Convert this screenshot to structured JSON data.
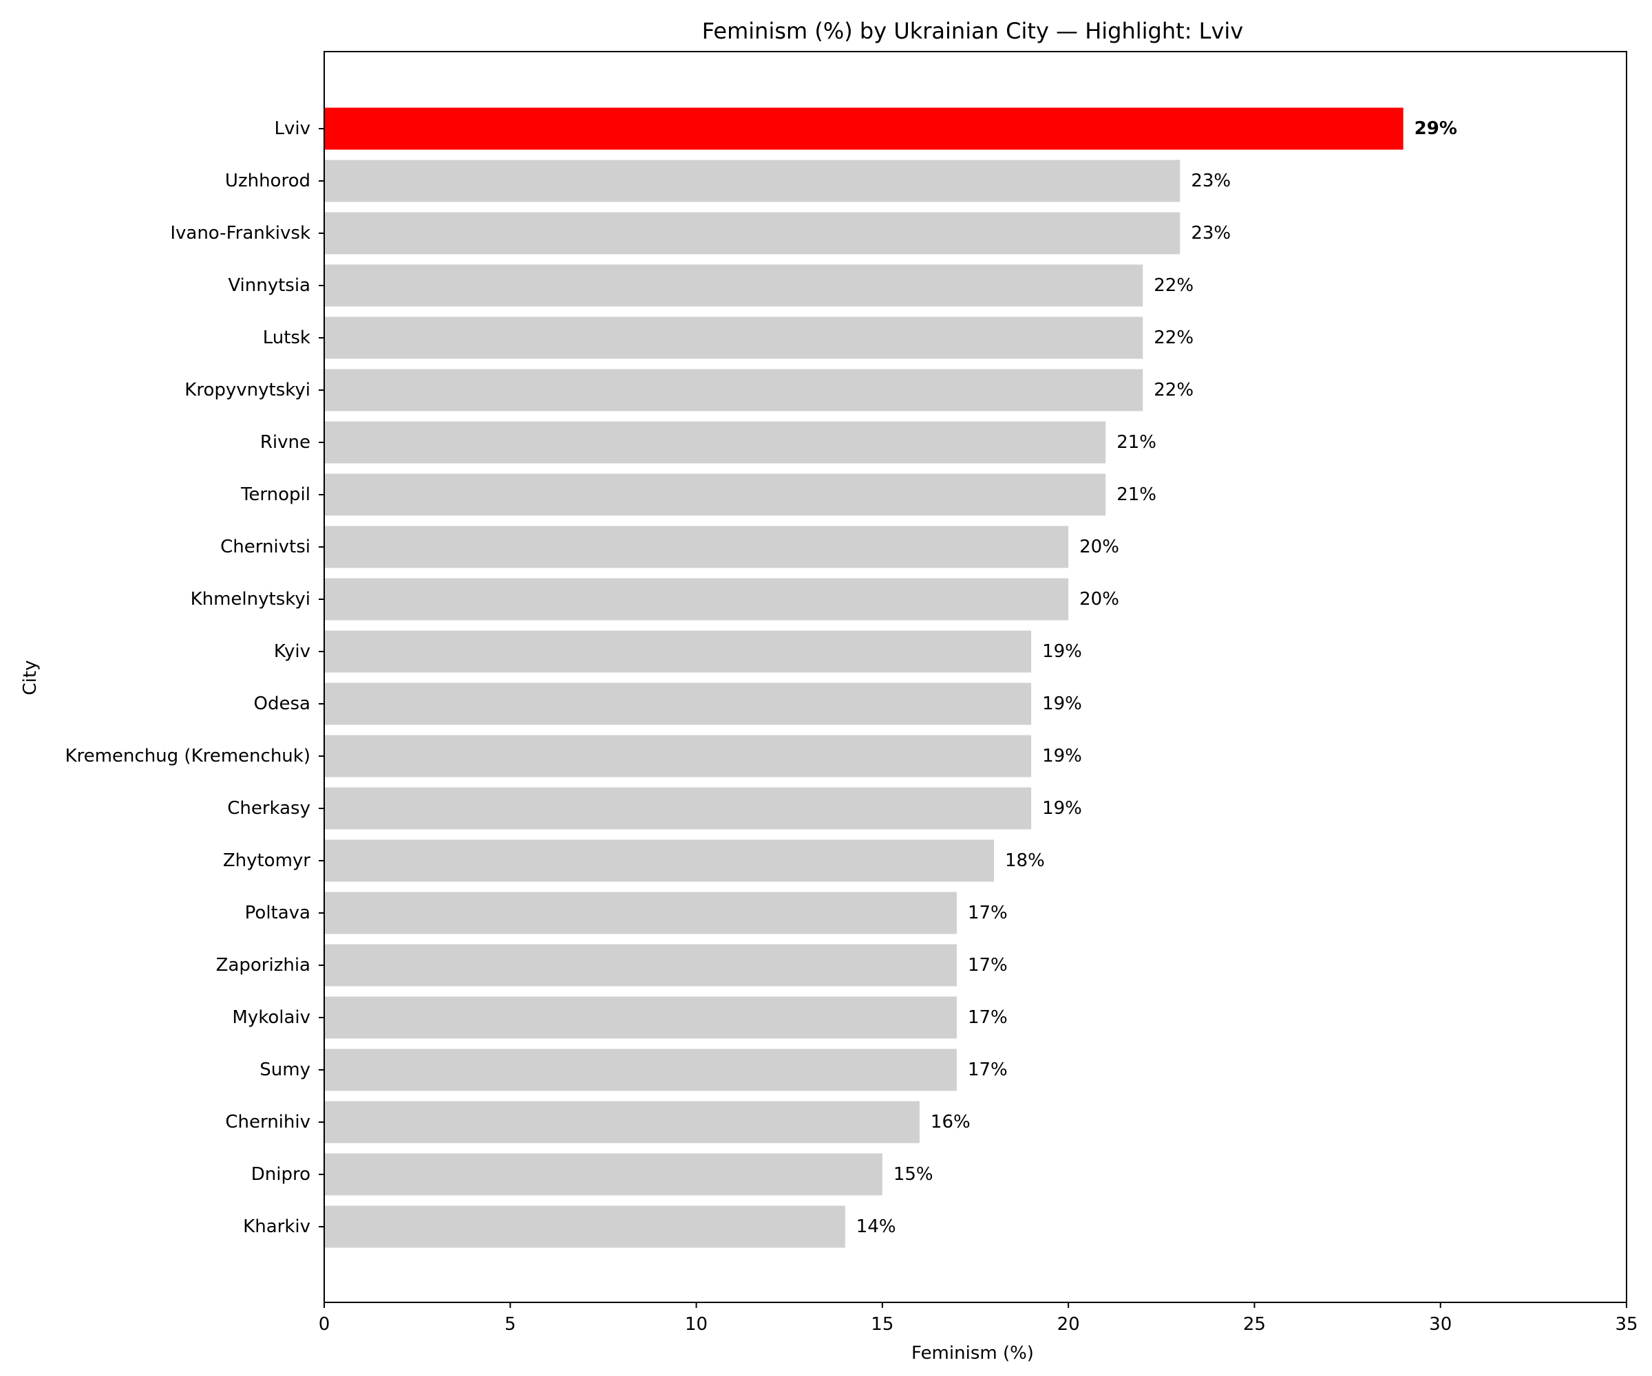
{
  "chart_data": {
    "type": "bar",
    "orientation": "horizontal",
    "title": "Feminism (%) by Ukrainian City — Highlight: Lviv",
    "xlabel": "Feminism (%)",
    "ylabel": "City",
    "xlim": [
      0,
      35
    ],
    "xticks": [
      0,
      5,
      10,
      15,
      20,
      25,
      30,
      35
    ],
    "grid": false,
    "highlight": "Lviv",
    "colors": {
      "highlight": "#ff0000",
      "default": "#d0d0d0"
    },
    "categories": [
      "Lviv",
      "Uzhhorod",
      "Ivano-Frankivsk",
      "Vinnytsia",
      "Lutsk",
      "Kropyvnytskyi",
      "Rivne",
      "Ternopil",
      "Chernivtsi",
      "Khmelnytskyi",
      "Kyiv",
      "Odesa",
      "Kremenchug (Kremenchuk)",
      "Cherkasy",
      "Zhytomyr",
      "Poltava",
      "Zaporizhia",
      "Mykolaiv",
      "Sumy",
      "Chernihiv",
      "Dnipro",
      "Kharkiv"
    ],
    "values": [
      29,
      23,
      23,
      22,
      22,
      22,
      21,
      21,
      20,
      20,
      19,
      19,
      19,
      19,
      18,
      17,
      17,
      17,
      17,
      16,
      15,
      14
    ],
    "value_labels": [
      "29%",
      "23%",
      "23%",
      "22%",
      "22%",
      "22%",
      "21%",
      "21%",
      "20%",
      "20%",
      "19%",
      "19%",
      "19%",
      "19%",
      "18%",
      "17%",
      "17%",
      "17%",
      "17%",
      "16%",
      "15%",
      "14%"
    ]
  }
}
